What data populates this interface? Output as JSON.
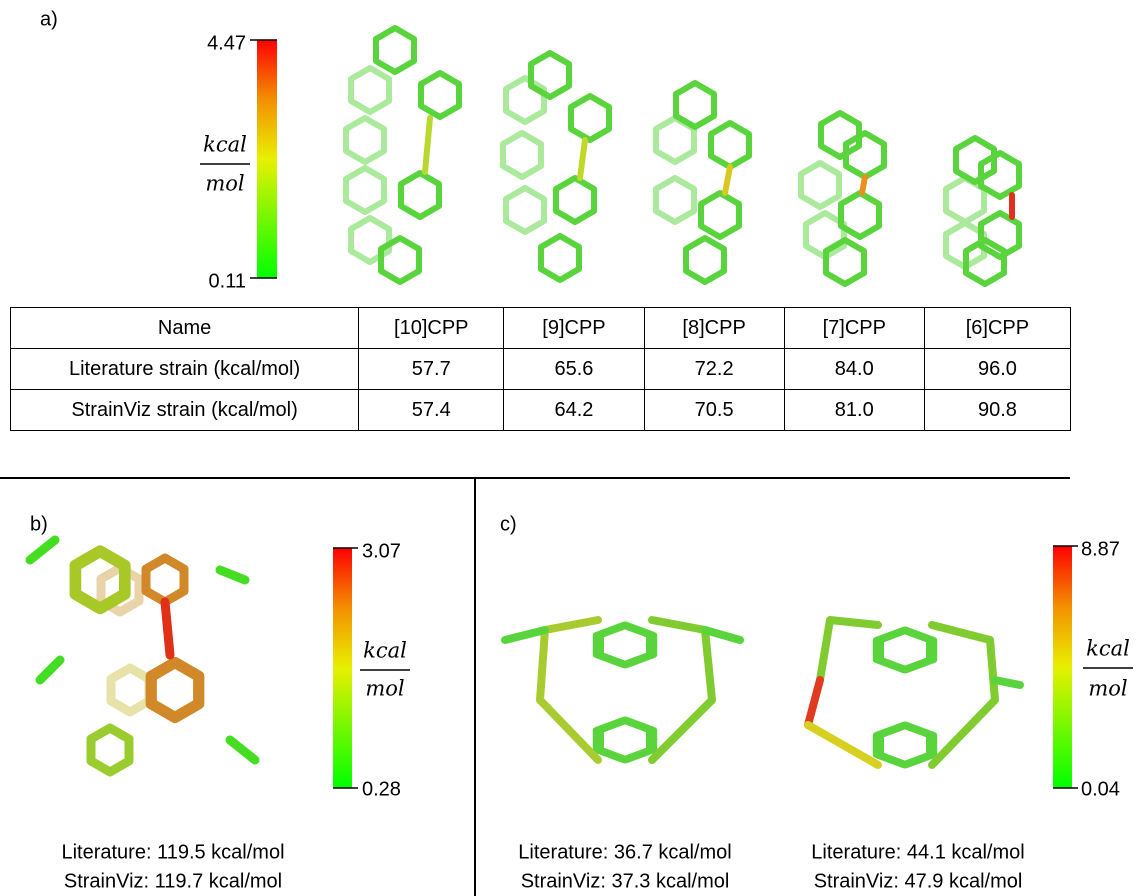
{
  "panel_a": {
    "label": "a)",
    "scale_max": "4.47",
    "scale_min": "0.11",
    "unit_numerator": "kcal",
    "unit_denominator": "mol",
    "table": {
      "header": [
        "Name",
        "[10]CPP",
        "[9]CPP",
        "[8]CPP",
        "[7]CPP",
        "[6]CPP"
      ],
      "rows": [
        [
          "Literature strain (kcal/mol)",
          "57.7",
          "65.6",
          "72.2",
          "84.0",
          "96.0"
        ],
        [
          "StrainViz strain (kcal/mol)",
          "57.4",
          "64.2",
          "70.5",
          "81.0",
          "90.8"
        ]
      ]
    }
  },
  "panel_b": {
    "label": "b)",
    "scale_max": "3.07",
    "scale_min": "0.28",
    "unit_numerator": "kcal",
    "unit_denominator": "mol",
    "caption": [
      "Literature: 119.5 kcal/mol",
      "StrainViz: 119.7 kcal/mol"
    ]
  },
  "panel_c": {
    "label": "c)",
    "scale_max": "8.87",
    "scale_min": "0.04",
    "unit_numerator": "kcal",
    "unit_denominator": "mol",
    "captions": [
      [
        "Literature: 36.7 kcal/mol",
        "StrainViz: 37.3 kcal/mol"
      ],
      [
        "Literature: 44.1 kcal/mol",
        "StrainViz: 47.9 kcal/mol"
      ]
    ]
  }
}
